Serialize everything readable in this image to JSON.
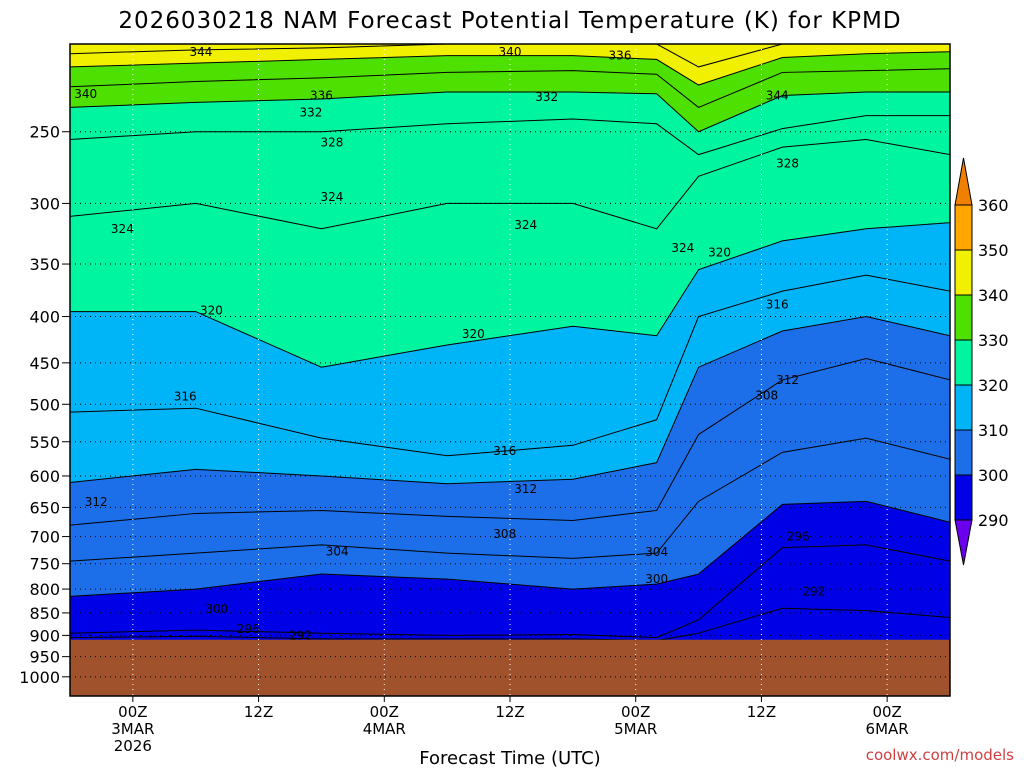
{
  "title": "2026030218 NAM Forecast Potential Temperature (K) for KPMD",
  "credit": "coolwx.com/models",
  "chart_data": {
    "type": "heatmap",
    "xlabel": "Forecast Time (UTC)",
    "ylabel": "",
    "y_scale": "log",
    "y_reversed": true,
    "ylim": [
      200,
      1050
    ],
    "y_ticks": [
      250,
      300,
      350,
      400,
      450,
      500,
      550,
      600,
      650,
      700,
      750,
      800,
      850,
      900,
      950,
      1000
    ],
    "x_unit": "hours from 2026-03-02 18Z",
    "xlim": [
      0,
      84
    ],
    "x_ticks": [
      {
        "x": 6,
        "lines": [
          "00Z",
          "3MAR",
          "2026"
        ]
      },
      {
        "x": 18,
        "lines": [
          "12Z"
        ]
      },
      {
        "x": 30,
        "lines": [
          "00Z",
          "4MAR"
        ]
      },
      {
        "x": 42,
        "lines": [
          "12Z"
        ]
      },
      {
        "x": 54,
        "lines": [
          "00Z",
          "5MAR"
        ]
      },
      {
        "x": 66,
        "lines": [
          "12Z"
        ]
      },
      {
        "x": 78,
        "lines": [
          "00Z",
          "6MAR"
        ]
      }
    ],
    "grid": true,
    "ground_top_hPa": 910,
    "ground_color": "#a0522d",
    "colorbar": {
      "levels": [
        290,
        300,
        310,
        320,
        330,
        340,
        350,
        360
      ],
      "colors": [
        "#6a00ee",
        "#0000e6",
        "#1c6fe8",
        "#00b4f8",
        "#00f5a0",
        "#4de000",
        "#f0f000",
        "#ffa700",
        "#f08000"
      ],
      "extend": "both"
    },
    "x": [
      0,
      12,
      24,
      36,
      48,
      56,
      60,
      68,
      76,
      84
    ],
    "isentropes": [
      {
        "theta": 292,
        "p": [
          905,
          902,
          908,
          908,
          908,
          912,
          895,
          840,
          845,
          860
        ]
      },
      {
        "theta": 296,
        "p": [
          895,
          888,
          895,
          900,
          898,
          905,
          865,
          720,
          715,
          745
        ]
      },
      {
        "theta": 300,
        "p": [
          815,
          800,
          770,
          780,
          800,
          790,
          770,
          645,
          640,
          675
        ]
      },
      {
        "theta": 304,
        "p": [
          745,
          730,
          715,
          730,
          740,
          730,
          640,
          565,
          545,
          575
        ]
      },
      {
        "theta": 308,
        "p": [
          680,
          660,
          655,
          665,
          672,
          655,
          540,
          470,
          445,
          470
        ]
      },
      {
        "theta": 312,
        "p": [
          610,
          590,
          600,
          612,
          605,
          580,
          455,
          415,
          400,
          420
        ]
      },
      {
        "theta": 316,
        "p": [
          510,
          505,
          545,
          570,
          555,
          520,
          400,
          375,
          360,
          375
        ]
      },
      {
        "theta": 320,
        "p": [
          395,
          395,
          455,
          430,
          410,
          420,
          355,
          330,
          320,
          315
        ]
      },
      {
        "theta": 324,
        "p": [
          310,
          300,
          320,
          300,
          300,
          320,
          280,
          260,
          255,
          265
        ]
      },
      {
        "theta": 328,
        "p": [
          255,
          250,
          250,
          245,
          242,
          245,
          265,
          248,
          240,
          240
        ]
      },
      {
        "theta": 332,
        "p": [
          235,
          232,
          230,
          226,
          226,
          227,
          250,
          228,
          226,
          226
        ]
      },
      {
        "theta": 336,
        "p": [
          223,
          220,
          218,
          215,
          214,
          216,
          235,
          215,
          214,
          213
        ]
      },
      {
        "theta": 340,
        "p": [
          212,
          210,
          208,
          206,
          206,
          208,
          222,
          207,
          205,
          204
        ]
      },
      {
        "theta": 344,
        "p": [
          205,
          203,
          202,
          200,
          200,
          200,
          212,
          200,
          199,
          199
        ]
      }
    ],
    "contour_labels": [
      {
        "text": "344",
        "x": 12.5,
        "p": 204
      },
      {
        "text": "340",
        "x": 1.5,
        "p": 227
      },
      {
        "text": "340",
        "x": 42,
        "p": 204
      },
      {
        "text": "336",
        "x": 52.5,
        "p": 206
      },
      {
        "text": "336",
        "x": 24,
        "p": 228
      },
      {
        "text": "332",
        "x": 23,
        "p": 238
      },
      {
        "text": "332",
        "x": 45.5,
        "p": 229
      },
      {
        "text": "344",
        "x": 67.5,
        "p": 228
      },
      {
        "text": "328",
        "x": 25,
        "p": 257
      },
      {
        "text": "328",
        "x": 68.5,
        "p": 271
      },
      {
        "text": "324",
        "x": 5,
        "p": 320
      },
      {
        "text": "324",
        "x": 25,
        "p": 295
      },
      {
        "text": "324",
        "x": 43.5,
        "p": 317
      },
      {
        "text": "324",
        "x": 58.5,
        "p": 336
      },
      {
        "text": "320",
        "x": 62,
        "p": 340
      },
      {
        "text": "320",
        "x": 13.5,
        "p": 394
      },
      {
        "text": "320",
        "x": 38.5,
        "p": 418
      },
      {
        "text": "316",
        "x": 67.5,
        "p": 388
      },
      {
        "text": "316",
        "x": 11,
        "p": 490
      },
      {
        "text": "316",
        "x": 41.5,
        "p": 563
      },
      {
        "text": "312",
        "x": 68.5,
        "p": 470
      },
      {
        "text": "308",
        "x": 66.5,
        "p": 489
      },
      {
        "text": "312",
        "x": 2.5,
        "p": 641
      },
      {
        "text": "312",
        "x": 43.5,
        "p": 620
      },
      {
        "text": "308",
        "x": 41.5,
        "p": 695
      },
      {
        "text": "304",
        "x": 25.5,
        "p": 727
      },
      {
        "text": "304",
        "x": 56,
        "p": 728
      },
      {
        "text": "300",
        "x": 56,
        "p": 780
      },
      {
        "text": "296",
        "x": 69.5,
        "p": 700
      },
      {
        "text": "292",
        "x": 71,
        "p": 805
      },
      {
        "text": "300",
        "x": 14,
        "p": 842
      },
      {
        "text": "296",
        "x": 17,
        "p": 885
      },
      {
        "text": "292",
        "x": 22,
        "p": 900
      }
    ]
  }
}
